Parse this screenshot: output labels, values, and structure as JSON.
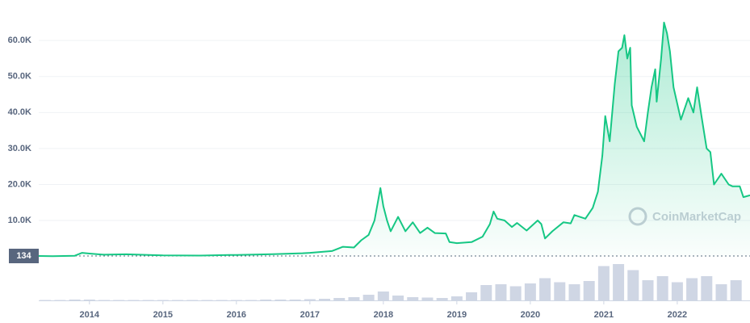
{
  "chart_data": {
    "type": "line",
    "xlim": [
      2013.31,
      2022.99
    ],
    "xticks": [
      2014,
      2015,
      2016,
      2017,
      2018,
      2019,
      2020,
      2021,
      2022
    ],
    "ylim": [
      0,
      70000
    ],
    "yticks": [
      {
        "value": 10000,
        "label": "10.0K"
      },
      {
        "value": 20000,
        "label": "20.0K"
      },
      {
        "value": 30000,
        "label": "30.0K"
      },
      {
        "value": 40000,
        "label": "40.0K"
      },
      {
        "value": 50000,
        "label": "50.0K"
      },
      {
        "value": 60000,
        "label": "60.0K"
      }
    ],
    "grid": true,
    "start_value": 134,
    "watermark": "CoinMarketCap",
    "series": [
      {
        "color": "#16c784",
        "x": [
          2013.31,
          2013.5,
          2013.8,
          2013.9,
          2014.0,
          2014.2,
          2014.5,
          2014.9,
          2015.0,
          2015.5,
          2015.9,
          2016.0,
          2016.5,
          2016.9,
          2017.0,
          2017.3,
          2017.45,
          2017.6,
          2017.7,
          2017.8,
          2017.88,
          2017.96,
          2018.0,
          2018.05,
          2018.1,
          2018.2,
          2018.3,
          2018.4,
          2018.5,
          2018.6,
          2018.7,
          2018.85,
          2018.9,
          2019.0,
          2019.2,
          2019.35,
          2019.45,
          2019.5,
          2019.55,
          2019.65,
          2019.75,
          2019.82,
          2019.95,
          2020.1,
          2020.15,
          2020.2,
          2020.3,
          2020.45,
          2020.55,
          2020.6,
          2020.75,
          2020.85,
          2020.92,
          2020.98,
          2021.02,
          2021.08,
          2021.15,
          2021.2,
          2021.25,
          2021.28,
          2021.32,
          2021.36,
          2021.38,
          2021.45,
          2021.55,
          2021.6,
          2021.65,
          2021.7,
          2021.72,
          2021.78,
          2021.82,
          2021.86,
          2021.9,
          2021.95,
          2022.05,
          2022.15,
          2022.22,
          2022.27,
          2022.33,
          2022.4,
          2022.45,
          2022.5,
          2022.6,
          2022.7,
          2022.75,
          2022.85,
          2022.9,
          2022.99
        ],
        "values": [
          134,
          100,
          200,
          1000,
          800,
          500,
          600,
          350,
          300,
          250,
          400,
          430,
          650,
          900,
          1000,
          1500,
          2700,
          2500,
          4500,
          6000,
          10000,
          19000,
          14000,
          10000,
          7000,
          11000,
          7000,
          9500,
          6500,
          8000,
          6500,
          6400,
          4000,
          3700,
          4000,
          5500,
          9000,
          12500,
          10500,
          10000,
          8200,
          9300,
          7200,
          10000,
          9000,
          5000,
          7000,
          9500,
          9200,
          11500,
          10500,
          13500,
          18000,
          28000,
          39000,
          32000,
          48000,
          57000,
          58000,
          61500,
          55000,
          58000,
          42000,
          36000,
          32000,
          40000,
          47000,
          52000,
          43000,
          55000,
          65000,
          62000,
          57000,
          47000,
          38000,
          44000,
          40000,
          47000,
          39000,
          30000,
          29000,
          20000,
          23000,
          20000,
          19500,
          19500,
          16500,
          17000
        ]
      }
    ],
    "volume": {
      "color": "#cfd6e4",
      "ylim": [
        0,
        100
      ],
      "x": [
        2013.4,
        2013.6,
        2013.8,
        2014.0,
        2014.2,
        2014.4,
        2014.6,
        2014.8,
        2015.0,
        2015.2,
        2015.4,
        2015.6,
        2015.8,
        2016.0,
        2016.2,
        2016.4,
        2016.6,
        2016.8,
        2017.0,
        2017.2,
        2017.4,
        2017.6,
        2017.8,
        2018.0,
        2018.2,
        2018.4,
        2018.6,
        2018.8,
        2019.0,
        2019.2,
        2019.4,
        2019.6,
        2019.8,
        2020.0,
        2020.2,
        2020.4,
        2020.6,
        2020.8,
        2021.0,
        2021.2,
        2021.4,
        2021.6,
        2021.8,
        2022.0,
        2022.2,
        2022.4,
        2022.6,
        2022.8
      ],
      "values": [
        1,
        1,
        2,
        2,
        1,
        1,
        1,
        1,
        1,
        1,
        1,
        1,
        1,
        1,
        1,
        2,
        2,
        2,
        3,
        4,
        6,
        8,
        14,
        22,
        12,
        8,
        7,
        6,
        10,
        20,
        38,
        40,
        35,
        42,
        55,
        45,
        40,
        48,
        85,
        90,
        75,
        50,
        60,
        45,
        55,
        60,
        40,
        50
      ]
    }
  }
}
